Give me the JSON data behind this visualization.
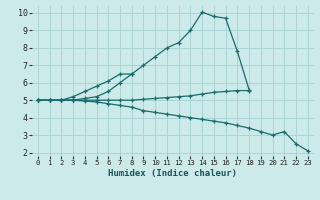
{
  "xlabel": "Humidex (Indice chaleur)",
  "xlim": [
    -0.5,
    23.5
  ],
  "ylim": [
    1.8,
    10.4
  ],
  "yticks": [
    2,
    3,
    4,
    5,
    6,
    7,
    8,
    9,
    10
  ],
  "xticks": [
    0,
    1,
    2,
    3,
    4,
    5,
    6,
    7,
    8,
    9,
    10,
    11,
    12,
    13,
    14,
    15,
    16,
    17,
    18,
    19,
    20,
    21,
    22,
    23
  ],
  "bg_color": "#cdeaea",
  "grid_color": "#aad4d4",
  "line_color": "#1a6b6b",
  "series": [
    {
      "x": [
        0,
        1,
        2,
        3,
        4,
        5,
        6,
        7,
        8,
        9,
        10,
        11,
        12,
        13,
        14,
        15,
        16,
        17,
        18
      ],
      "y": [
        5.0,
        5.0,
        5.0,
        5.0,
        5.1,
        5.2,
        5.5,
        6.0,
        6.5,
        7.0,
        7.5,
        8.0,
        8.3,
        9.0,
        10.05,
        9.8,
        9.7,
        7.8,
        5.6
      ]
    },
    {
      "x": [
        0,
        1,
        2,
        3,
        4,
        5,
        6,
        7,
        8
      ],
      "y": [
        5.0,
        5.0,
        5.0,
        5.2,
        5.5,
        5.8,
        6.1,
        6.5,
        6.5
      ]
    },
    {
      "x": [
        0,
        1,
        2,
        3,
        4,
        5,
        6,
        7,
        8,
        9,
        10,
        11,
        12,
        13,
        14,
        15,
        16,
        17,
        18
      ],
      "y": [
        5.0,
        5.0,
        5.0,
        5.0,
        5.0,
        5.0,
        5.0,
        5.0,
        5.0,
        5.05,
        5.1,
        5.15,
        5.2,
        5.25,
        5.35,
        5.45,
        5.5,
        5.55,
        5.55
      ]
    },
    {
      "x": [
        0,
        1,
        2,
        3,
        4,
        5,
        6,
        7,
        8,
        9,
        10,
        11,
        12,
        13,
        14,
        15,
        16,
        17,
        18,
        19,
        20,
        21,
        22,
        23
      ],
      "y": [
        5.0,
        5.0,
        5.0,
        5.0,
        4.95,
        4.9,
        4.8,
        4.7,
        4.6,
        4.4,
        4.3,
        4.2,
        4.1,
        4.0,
        3.9,
        3.8,
        3.7,
        3.55,
        3.4,
        3.2,
        3.0,
        3.2,
        2.5,
        2.1
      ]
    }
  ]
}
